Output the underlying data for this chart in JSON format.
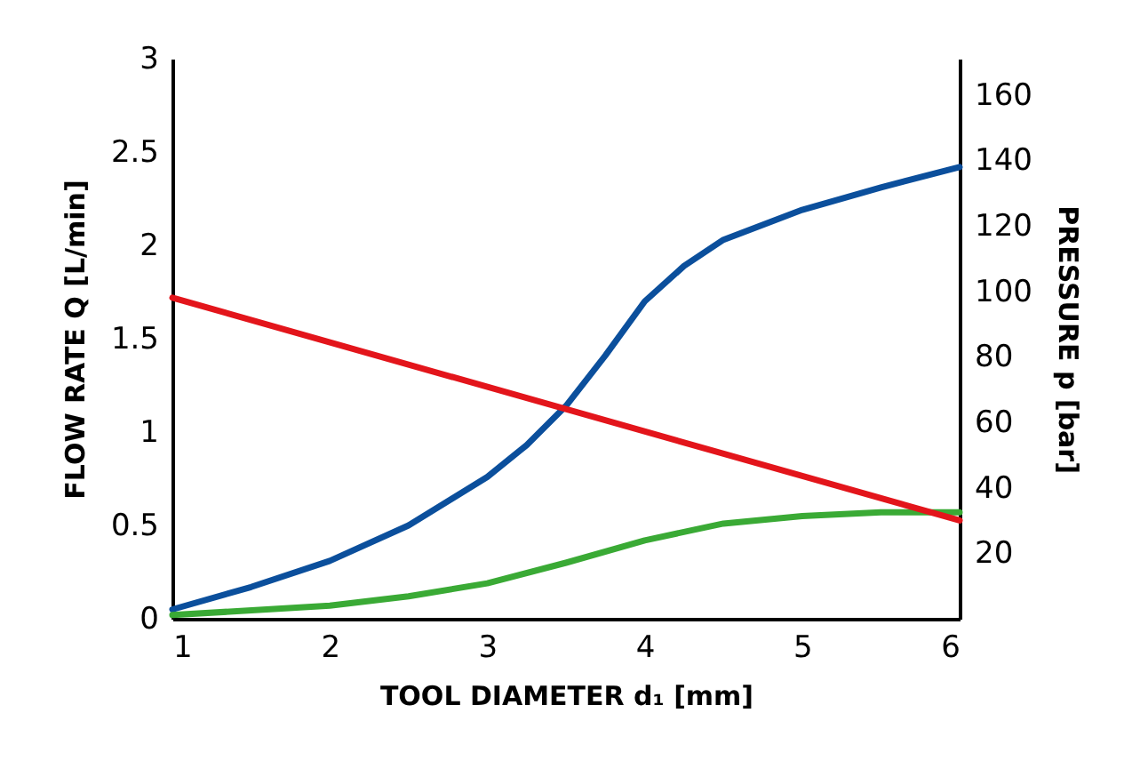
{
  "chart_data": {
    "type": "line",
    "xlabel": "TOOL DIAMETER   d₁ [mm]",
    "ylabel": "FLOW RATE   Q [L/min]",
    "y2label": "PRESSURE   p [bar]",
    "xlim": [
      1,
      6
    ],
    "xticks": [
      1,
      2,
      3,
      4,
      5,
      6
    ],
    "ylim": [
      0,
      3
    ],
    "yticks": [
      0,
      0.5,
      1,
      1.5,
      2,
      2.5,
      3
    ],
    "y2lim": [
      0,
      171
    ],
    "y2ticks": [
      20,
      40,
      60,
      80,
      100,
      120,
      140,
      160
    ],
    "grid": false,
    "legend": false,
    "marker": "none",
    "line_style": "solid",
    "series": [
      {
        "color": "#0b4f9c",
        "x": [
          1,
          1.5,
          2,
          2.5,
          3,
          3.25,
          3.5,
          3.75,
          4,
          4.25,
          4.5,
          5,
          5.5,
          6
        ],
        "values": [
          0.05,
          0.17,
          0.31,
          0.5,
          0.76,
          0.93,
          1.14,
          1.41,
          1.7,
          1.89,
          2.03,
          2.19,
          2.31,
          2.42
        ]
      },
      {
        "color": "#3aaa35",
        "x": [
          1,
          2,
          2.5,
          3,
          3.5,
          4,
          4.5,
          5,
          5.5,
          6
        ],
        "values": [
          0.02,
          0.07,
          0.12,
          0.19,
          0.3,
          0.42,
          0.51,
          0.55,
          0.57,
          0.57
        ]
      },
      {
        "color": "#e3151b",
        "axis": "y2",
        "x": [
          1,
          6
        ],
        "values": [
          98,
          30
        ]
      }
    ]
  }
}
